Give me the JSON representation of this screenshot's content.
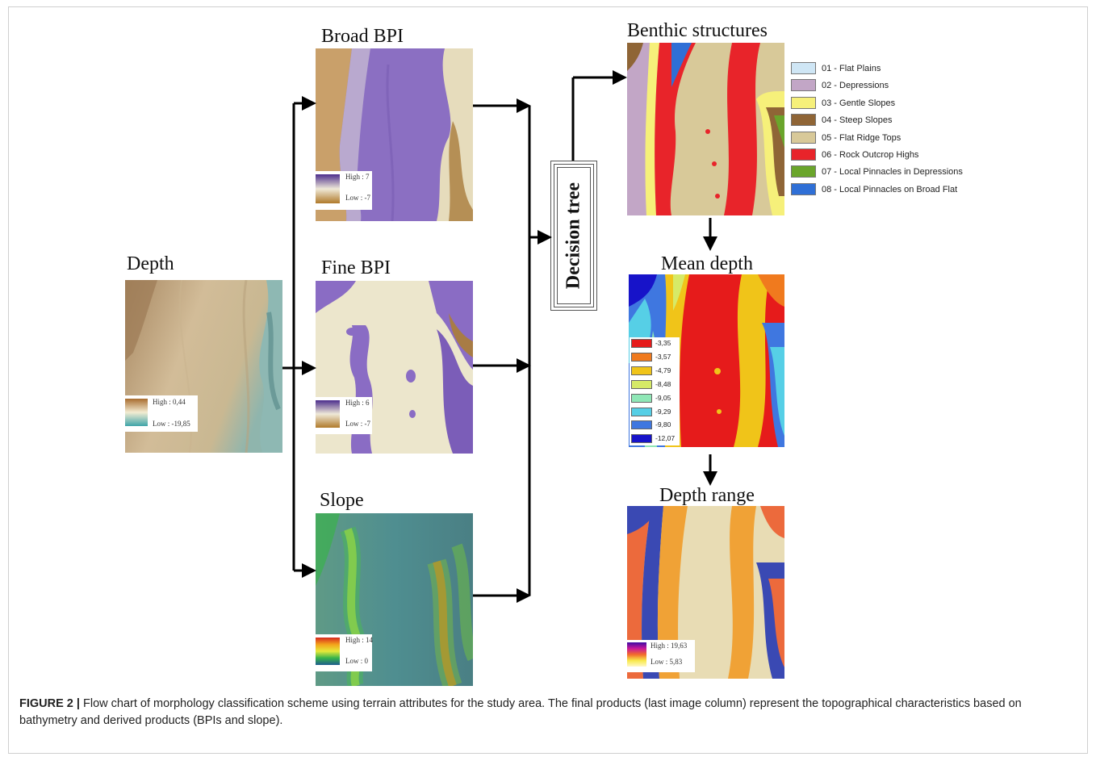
{
  "titles": {
    "depth": "Depth",
    "broad_bpi": "Broad BPI",
    "fine_bpi": "Fine BPI",
    "slope": "Slope",
    "benthic": "Benthic structures",
    "mean_depth": "Mean depth",
    "depth_range": "Depth range",
    "decision_tree": "Decision tree"
  },
  "legends": {
    "depth": {
      "high": "High : 0,44",
      "low": "Low : -19,85"
    },
    "broad_bpi": {
      "high": "High : 7",
      "low": "Low : -7"
    },
    "fine_bpi": {
      "high": "High : 6",
      "low": "Low : -7"
    },
    "slope": {
      "high": "High : 14",
      "low": "Low : 0"
    },
    "depth_range": {
      "high": "High : 19,63",
      "low": "Low : 5,83"
    }
  },
  "benthic_classes": [
    {
      "label": "01 - Flat Plains",
      "color": "#cfe6f5"
    },
    {
      "label": "02 - Depressions",
      "color": "#c2a6c6"
    },
    {
      "label": "03 - Gentle Slopes",
      "color": "#f6f07a"
    },
    {
      "label": "04 - Steep Slopes",
      "color": "#8f6536"
    },
    {
      "label": "05 - Flat Ridge Tops",
      "color": "#d8c999"
    },
    {
      "label": "06 - Rock Outcrop Highs",
      "color": "#e8242a"
    },
    {
      "label": "07 - Local Pinnacles in Depressions",
      "color": "#6aa52b"
    },
    {
      "label": "08 - Local Pinnacles on Broad Flat",
      "color": "#2f6fd6"
    }
  ],
  "mean_depth_classes": [
    {
      "label": "-3,35",
      "color": "#e61b1b"
    },
    {
      "label": "-3,57",
      "color": "#f07a1e"
    },
    {
      "label": "-4,79",
      "color": "#f0c419"
    },
    {
      "label": "-8,48",
      "color": "#d6ea67"
    },
    {
      "label": "-9,05",
      "color": "#8fe7b6"
    },
    {
      "label": "-9,29",
      "color": "#56cfe6"
    },
    {
      "label": "-9,80",
      "color": "#3f77e0"
    },
    {
      "label": "-12,07",
      "color": "#1713c9"
    }
  ],
  "caption": {
    "label": "FIGURE 2 |",
    "text": " Flow chart of morphology classification scheme using terrain attributes for the study area. The final products (last image column) represent the topographical characteristics based on bathymetry and derived products (BPIs and slope)."
  }
}
